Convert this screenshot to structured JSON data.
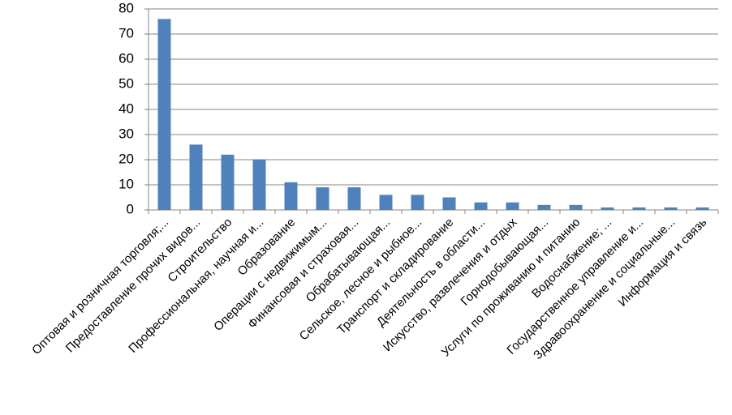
{
  "chart_data": {
    "type": "bar",
    "categories": [
      "Оптовая и розничная торговля;...",
      "Предоставление прочих видов...",
      "Строительство",
      "Профессиональная,  научная и...",
      "Образование",
      "Операции  с недвижимым...",
      "Финансовая и страховая...",
      "Обрабатывающая...",
      "Сельское, лесное и рыбное...",
      "Транспорт и складирование",
      "Деятельность в области...",
      "Искусство, развлечения и отдых",
      "Горнодобывающая...",
      "Услуги по проживанию и питанию",
      "Водоснабжение; ...",
      "Государственное управление и...",
      "Здравоохранение  и социальные...",
      "Информация  и связь"
    ],
    "values": [
      76,
      26,
      22,
      20,
      11,
      9,
      9,
      6,
      6,
      5,
      3,
      3,
      2,
      2,
      1,
      1,
      1,
      1
    ],
    "color": "#4f81bd",
    "ylim": [
      0,
      80
    ],
    "yticks": [
      0,
      10,
      20,
      30,
      40,
      50,
      60,
      70,
      80
    ],
    "grid": true
  }
}
